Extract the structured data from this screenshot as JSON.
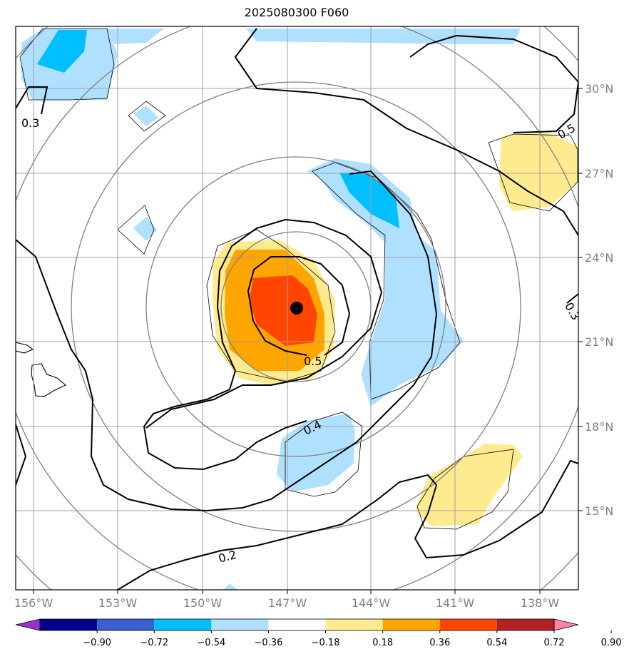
{
  "title": "2025080300 F060",
  "lon_labels": [
    "156°W",
    "153°W",
    "150°W",
    "147°W",
    "144°W",
    "141°W",
    "138°W"
  ],
  "lat_labels": [
    "30°N",
    "27°N",
    "24°N",
    "21°N",
    "18°N",
    "15°N"
  ],
  "colorbar": {
    "ticks": [
      "−0.90",
      "−0.72",
      "−0.54",
      "−0.36",
      "−0.18",
      "0.18",
      "0.36",
      "0.54",
      "0.72",
      "0.90"
    ],
    "colors": [
      "#9932cc",
      "#00008b",
      "#3a5fcd",
      "#00bfff",
      "#b0e0ff",
      "#ffffff",
      "#ffeb8f",
      "#ffa500",
      "#ff4500",
      "#b22222",
      "#ff82ab"
    ]
  },
  "contour_labels": [
    "0.3",
    "0.5",
    "0.3",
    "0.5",
    "0.4",
    "0.2"
  ],
  "storm_marker": "storm-center"
}
